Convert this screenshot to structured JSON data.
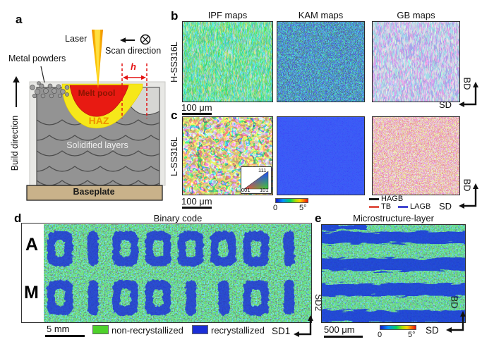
{
  "panel_a": {
    "label": "a",
    "laser_label": "Laser",
    "scan_direction_label": "Scan direction",
    "metal_powders_label": "Metal powders",
    "hatch_spacing_label": "h",
    "melt_pool_label": "Melt pool",
    "haz_label": "HAZ",
    "solidified_layers_label": "Solidified layers",
    "baseplate_label": "Baseplate",
    "build_direction_label": "Build direction"
  },
  "panel_b": {
    "label": "b",
    "column_headers": [
      "IPF maps",
      "KAM maps",
      "GB maps"
    ],
    "sample_label": "H-SS316L",
    "scale_bar": "100 μm",
    "axis": {
      "vertical": "BD",
      "horizontal": "SD"
    }
  },
  "panel_c": {
    "label": "c",
    "sample_label": "L-SS316L",
    "scale_bar": "100 μm",
    "ipf_triangle": {
      "top_right": "111",
      "bottom_left": "001",
      "bottom_right": "101"
    },
    "kam_colorbar": {
      "min": "0",
      "max": "5°"
    },
    "gb_legend": [
      {
        "label": "HAGB",
        "color": "#1a1a1a"
      },
      {
        "label": "TB",
        "color": "#e0574a"
      },
      {
        "label": "LAGB",
        "color": "#4448d0"
      }
    ],
    "axis": {
      "vertical": "BD",
      "horizontal": "SD"
    }
  },
  "panel_d": {
    "label": "d",
    "title": "Binary code",
    "rows": [
      {
        "letter": "A",
        "bits": [
          "0",
          "1",
          "0",
          "0",
          "0",
          "0",
          "0",
          "1"
        ]
      },
      {
        "letter": "M",
        "bits": [
          "0",
          "1",
          "0",
          "0",
          "1",
          "1",
          "0",
          "1"
        ]
      }
    ],
    "scale_bar": "5 mm",
    "legend": [
      {
        "label": "non-recrystallized",
        "color": "#4ed22b"
      },
      {
        "label": "recrystallized",
        "color": "#1b2ed8"
      }
    ],
    "axis": {
      "vertical": "SD2",
      "horizontal": "SD1"
    }
  },
  "panel_e": {
    "label": "e",
    "title": "Microstructure-layer",
    "scale_bar": "500 μm",
    "colorbar": {
      "min": "0",
      "max": "5°"
    },
    "axis": {
      "vertical": "BD",
      "horizontal": "SD"
    }
  }
}
